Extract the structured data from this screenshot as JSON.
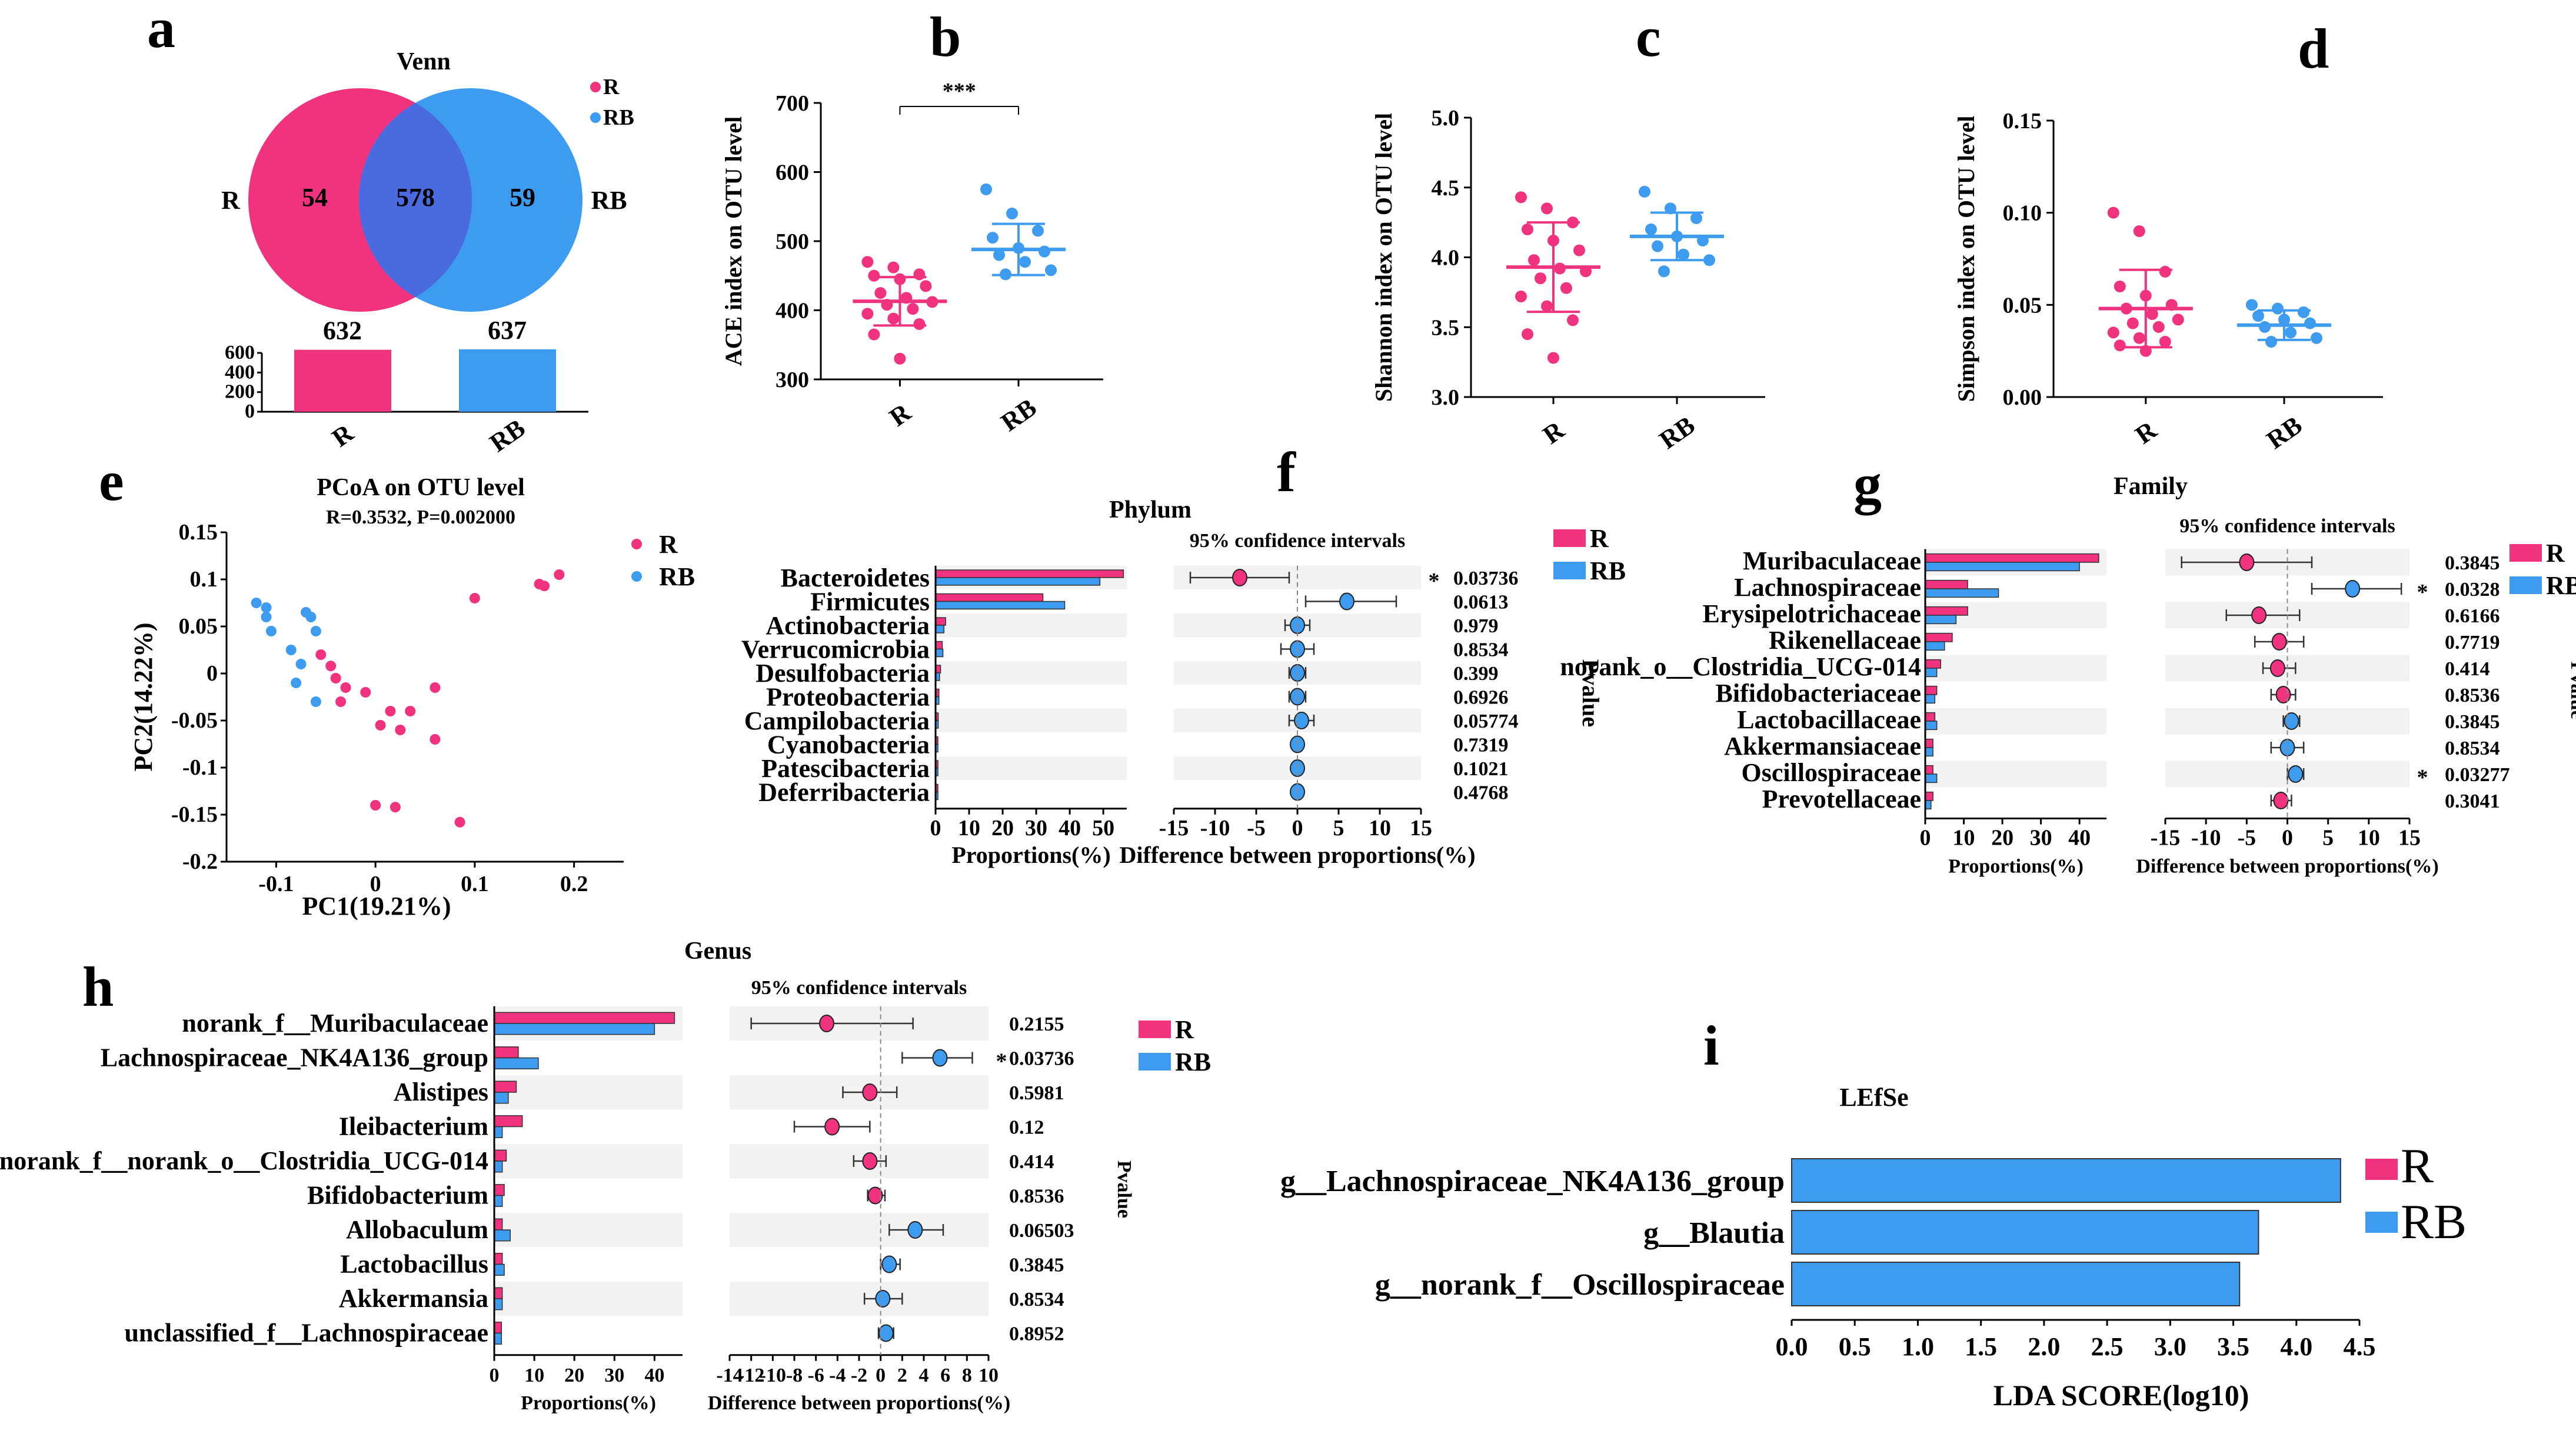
{
  "colors": {
    "R": "#f0327f",
    "RB": "#3d9bf0",
    "venn_overlap": "#4a6be0",
    "sig": "#c0392b"
  },
  "panels": {
    "a": {
      "label": "a"
    },
    "b": {
      "label": "b"
    },
    "c": {
      "label": "c"
    },
    "d": {
      "label": "d"
    },
    "e": {
      "label": "e"
    },
    "f": {
      "label": "f"
    },
    "g": {
      "label": "g"
    },
    "h": {
      "label": "h"
    },
    "i": {
      "label": "i"
    }
  },
  "chart_data": [
    {
      "panel": "a",
      "type": "venn",
      "title": "Venn",
      "sets": [
        {
          "name": "R",
          "unique": 54,
          "total": 632
        },
        {
          "name": "RB",
          "unique": 59,
          "total": 637
        }
      ],
      "overlap": 578,
      "bar": {
        "categories": [
          "R",
          "RB"
        ],
        "values": [
          632,
          637
        ],
        "yticks": [
          "600",
          "400",
          "200",
          "0"
        ]
      }
    },
    {
      "panel": "b",
      "type": "scatter",
      "ylabel": "ACE index on OTU level",
      "ylim": [
        300,
        700
      ],
      "yticks": [
        300,
        400,
        500,
        600,
        700
      ],
      "categories": [
        "R",
        "RB"
      ],
      "significance": "***",
      "series": [
        {
          "name": "R",
          "mean": 413,
          "sd": 35,
          "values": [
            470,
            462,
            452,
            450,
            445,
            435,
            425,
            418,
            412,
            408,
            402,
            395,
            388,
            380,
            365,
            330
          ]
        },
        {
          "name": "RB",
          "mean": 488,
          "sd": 37,
          "values": [
            575,
            540,
            515,
            505,
            490,
            485,
            480,
            470,
            458,
            452
          ]
        }
      ]
    },
    {
      "panel": "c",
      "type": "scatter",
      "ylabel": "Shannon index on OTU level",
      "ylim": [
        3.0,
        5.0
      ],
      "yticks": [
        "3.0",
        "3.5",
        "4.0",
        "4.5",
        "5.0"
      ],
      "categories": [
        "R",
        "RB"
      ],
      "series": [
        {
          "name": "R",
          "mean": 3.93,
          "sd": 0.32,
          "values": [
            4.43,
            4.35,
            4.25,
            4.2,
            4.12,
            4.05,
            3.98,
            3.92,
            3.9,
            3.85,
            3.78,
            3.72,
            3.65,
            3.55,
            3.45,
            3.28
          ]
        },
        {
          "name": "RB",
          "mean": 4.15,
          "sd": 0.17,
          "values": [
            4.47,
            4.35,
            4.28,
            4.2,
            4.15,
            4.12,
            4.08,
            4.02,
            3.98,
            3.9
          ]
        }
      ]
    },
    {
      "panel": "d",
      "type": "scatter",
      "ylabel": "Simpson index on OTU level",
      "ylim": [
        0,
        0.15
      ],
      "yticks": [
        "0.00",
        "0.05",
        "0.10",
        "0.15"
      ],
      "categories": [
        "R",
        "RB"
      ],
      "series": [
        {
          "name": "R",
          "mean": 0.048,
          "sd": 0.021,
          "values": [
            0.1,
            0.09,
            0.068,
            0.06,
            0.055,
            0.05,
            0.048,
            0.045,
            0.042,
            0.04,
            0.038,
            0.035,
            0.032,
            0.03,
            0.028,
            0.025
          ]
        },
        {
          "name": "RB",
          "mean": 0.039,
          "sd": 0.008,
          "values": [
            0.05,
            0.048,
            0.046,
            0.044,
            0.042,
            0.04,
            0.038,
            0.035,
            0.032,
            0.03
          ]
        }
      ]
    },
    {
      "panel": "e",
      "type": "scatter",
      "title": "PCoA on OTU level",
      "subtitle": "R=0.3532, P=0.002000",
      "xlabel": "PC1(19.21%)",
      "ylabel": "PC2(14.22%)",
      "xlim": [
        -0.15,
        0.25
      ],
      "ylim": [
        -0.2,
        0.15
      ],
      "xticks": [
        "-0.1",
        "0",
        "0.1",
        "0.2"
      ],
      "yticks": [
        "0.15",
        "0.1",
        "0.05",
        "0",
        "-0.05",
        "-0.1",
        "-0.15",
        "-0.2"
      ],
      "series": [
        {
          "name": "R",
          "points": [
            [
              0.185,
              0.105
            ],
            [
              0.165,
              0.095
            ],
            [
              0.17,
              0.093
            ],
            [
              0.1,
              0.08
            ],
            [
              -0.055,
              0.02
            ],
            [
              -0.045,
              0.008
            ],
            [
              -0.04,
              -0.005
            ],
            [
              -0.03,
              -0.015
            ],
            [
              -0.01,
              -0.02
            ],
            [
              0.06,
              -0.015
            ],
            [
              -0.035,
              -0.03
            ],
            [
              0.015,
              -0.04
            ],
            [
              0.035,
              -0.04
            ],
            [
              0.005,
              -0.055
            ],
            [
              0.025,
              -0.06
            ],
            [
              0.06,
              -0.07
            ],
            [
              0.0,
              -0.14
            ],
            [
              0.02,
              -0.142
            ],
            [
              0.085,
              -0.158
            ]
          ]
        },
        {
          "name": "RB",
          "points": [
            [
              -0.12,
              0.075
            ],
            [
              -0.11,
              0.07
            ],
            [
              -0.11,
              0.06
            ],
            [
              -0.07,
              0.065
            ],
            [
              -0.065,
              0.06
            ],
            [
              -0.06,
              0.045
            ],
            [
              -0.105,
              0.045
            ],
            [
              -0.085,
              0.025
            ],
            [
              -0.075,
              0.01
            ],
            [
              -0.08,
              -0.01
            ],
            [
              -0.06,
              -0.03
            ]
          ]
        }
      ]
    },
    {
      "panel": "f",
      "type": "bar",
      "title": "Phylum",
      "ci_title": "95% confidence intervals",
      "xlabel": "Proportions(%)",
      "diff_label": "Difference between proportions(%)",
      "pvalue_label": "Pvalue",
      "prop_ticks": [
        "0",
        "10",
        "20",
        "30",
        "40",
        "50"
      ],
      "prop_max": 57,
      "diff_ticks": [
        "-15",
        "-10",
        "-5",
        "0",
        "5",
        "10",
        "15"
      ],
      "diff_range": [
        -15,
        15
      ],
      "categories": [
        "Bacteroidetes",
        "Firmicutes",
        "Actinobacteria",
        "Verrucomicrobia",
        "Desulfobacteria",
        "Proteobacteria",
        "Campilobacteria",
        "Cyanobacteria",
        "Patescibacteria",
        "Deferribacteria"
      ],
      "series": [
        {
          "name": "R",
          "values": [
            56,
            32,
            3,
            2,
            1.5,
            1,
            0.8,
            0.5,
            0.3,
            0.2
          ]
        },
        {
          "name": "RB",
          "values": [
            49,
            38.5,
            2.5,
            2.2,
            1.2,
            1,
            0.8,
            0.4,
            0.3,
            0.2
          ]
        }
      ],
      "diff": [
        -7,
        6,
        0,
        0,
        0,
        0,
        0.5,
        0,
        0,
        0
      ],
      "ci": [
        [
          -13,
          -1
        ],
        [
          1,
          12
        ],
        [
          -1.5,
          1.5
        ],
        [
          -2,
          2
        ],
        [
          -1,
          1
        ],
        [
          -1,
          1
        ],
        [
          -1,
          2
        ],
        [
          -0.5,
          0.5
        ],
        [
          -0.5,
          0.5
        ],
        [
          -0.5,
          0.5
        ]
      ],
      "pvalues": [
        "0.03736",
        "0.0613",
        "0.979",
        "0.8534",
        "0.399",
        "0.6926",
        "0.05774",
        "0.7319",
        "0.1021",
        "0.4768"
      ],
      "sig": [
        "*",
        "",
        "",
        "",
        "",
        "",
        "",
        "",
        "",
        ""
      ]
    },
    {
      "panel": "g",
      "type": "bar",
      "title": "Family",
      "ci_title": "95% confidence intervals",
      "xlabel": "Proportions(%)",
      "diff_label": "Difference between proportions(%)",
      "pvalue_label": "Pvalue",
      "prop_ticks": [
        "0",
        "10",
        "20",
        "30",
        "40"
      ],
      "prop_max": 47,
      "diff_ticks": [
        "-15",
        "-10",
        "-5",
        "0",
        "5",
        "10",
        "15"
      ],
      "diff_range": [
        -15,
        15
      ],
      "categories": [
        "Muribaculaceae",
        "Lachnospiraceae",
        "Erysipelotrichaceae",
        "Rikenellaceae",
        "norank_o__Clostridia_UCG-014",
        "Bifidobacteriaceae",
        "Lactobacillaceae",
        "Akkermansiaceae",
        "Oscillospiraceae",
        "Prevotellaceae"
      ],
      "series": [
        {
          "name": "R",
          "values": [
            45,
            11,
            11,
            7,
            4,
            3,
            2.5,
            2,
            2,
            2
          ]
        },
        {
          "name": "RB",
          "values": [
            40,
            19,
            8,
            5,
            3,
            2.5,
            3,
            2,
            3,
            1.5
          ]
        }
      ],
      "diff": [
        -5,
        8,
        -3.5,
        -1,
        -1.2,
        -0.5,
        0.5,
        0,
        1,
        -0.8
      ],
      "ci": [
        [
          -13,
          3
        ],
        [
          3,
          14
        ],
        [
          -7.5,
          1.5
        ],
        [
          -4,
          2
        ],
        [
          -3,
          1
        ],
        [
          -2,
          1
        ],
        [
          -0.5,
          1.5
        ],
        [
          -2,
          2
        ],
        [
          0,
          2
        ],
        [
          -2,
          0.5
        ]
      ],
      "pvalues": [
        "0.3845",
        "0.0328",
        "0.6166",
        "0.7719",
        "0.414",
        "0.8536",
        "0.3845",
        "0.8534",
        "0.03277",
        "0.3041"
      ],
      "sig": [
        "",
        "*",
        "",
        "",
        "",
        "",
        "",
        "",
        "*",
        ""
      ]
    },
    {
      "panel": "h",
      "type": "bar",
      "title": "Genus",
      "ci_title": "95% confidence intervals",
      "xlabel": "Proportions(%)",
      "diff_label": "Difference between proportions(%)",
      "pvalue_label": "Pvalue",
      "prop_ticks": [
        "0",
        "10",
        "20",
        "30",
        "40"
      ],
      "prop_max": 47,
      "diff_ticks": [
        "-14",
        "-12",
        "-10",
        "-8",
        "-6",
        "-4",
        "-2",
        "0",
        "2",
        "4",
        "6",
        "8",
        "10"
      ],
      "diff_range": [
        -14,
        10
      ],
      "categories": [
        "norank_f__Muribaculaceae",
        "Lachnospiraceae_NK4A136_group",
        "Alistipes",
        "Ileibacterium",
        "norank_f__norank_o__Clostridia_UCG-014",
        "Bifidobacterium",
        "Allobaculum",
        "Lactobacillus",
        "Akkermansia",
        "unclassified_f__Lachnospiraceae"
      ],
      "series": [
        {
          "name": "R",
          "values": [
            45,
            6,
            5.5,
            7,
            3,
            2.5,
            2,
            2,
            2,
            1.8
          ]
        },
        {
          "name": "RB",
          "values": [
            40,
            11,
            3.5,
            2,
            2,
            2,
            4,
            2.5,
            2,
            1.8
          ]
        }
      ],
      "diff": [
        -5,
        5.5,
        -1,
        -4.5,
        -1,
        -0.5,
        3.2,
        0.8,
        0.2,
        0.5
      ],
      "ci": [
        [
          -12,
          3
        ],
        [
          2,
          8.5
        ],
        [
          -3.5,
          1.5
        ],
        [
          -8,
          -1
        ],
        [
          -2.5,
          0.5
        ],
        [
          -1.2,
          0.4
        ],
        [
          0.8,
          5.8
        ],
        [
          0,
          1.8
        ],
        [
          -1.5,
          2
        ],
        [
          -0.2,
          1.2
        ]
      ],
      "pvalues": [
        "0.2155",
        "0.03736",
        "0.5981",
        "0.12",
        "0.414",
        "0.8536",
        "0.06503",
        "0.3845",
        "0.8534",
        "0.8952"
      ],
      "sig": [
        "",
        "*",
        "",
        "",
        "",
        "",
        "",
        "",
        "",
        ""
      ]
    },
    {
      "panel": "i",
      "type": "bar",
      "title": "LEfSe",
      "xlabel": "LDA SCORE(log10)",
      "xticks": [
        "0.0",
        "0.5",
        "1.0",
        "1.5",
        "2.0",
        "2.5",
        "3.0",
        "3.5",
        "4.0",
        "4.5"
      ],
      "xmax": 4.5,
      "categories": [
        "g__Lachnospiraceae_NK4A136_group",
        "g__Blautia",
        "g__norank_f__Oscillospiraceae"
      ],
      "values": [
        4.35,
        3.7,
        3.55
      ],
      "group": [
        "RB",
        "RB",
        "RB"
      ]
    }
  ],
  "legend": {
    "R": "R",
    "RB": "RB"
  }
}
